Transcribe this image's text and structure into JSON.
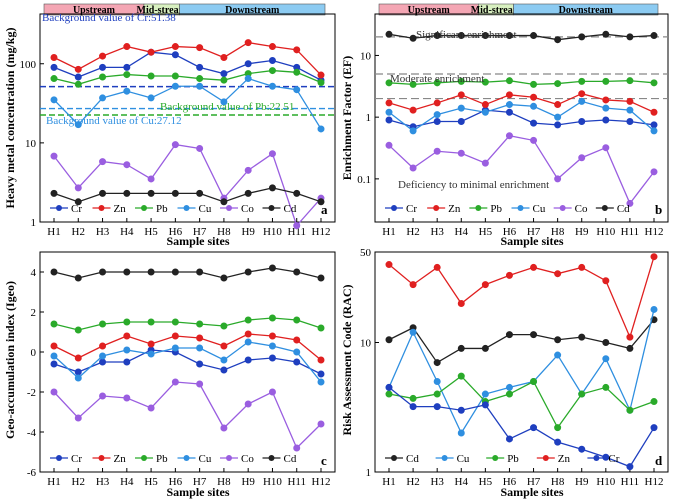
{
  "sites": [
    "H1",
    "H2",
    "H3",
    "H4",
    "H5",
    "H6",
    "H7",
    "H8",
    "H9",
    "H10",
    "H11",
    "H12"
  ],
  "xlabel": "Sample sites",
  "regions": {
    "upstream": "Upstream",
    "midstream": "Mid-stream",
    "downstream": "Downstream"
  },
  "colors": {
    "Cr": "#1f3fbf",
    "Zn": "#e02020",
    "Pb": "#2aaa2a",
    "Cu": "#2f8fe0",
    "Co": "#9a5ee0",
    "Cd": "#222222",
    "upstream_fill": "#f4a6b4",
    "midstream_fill": "#d8f0c0",
    "downstream_fill": "#8ccbf2"
  },
  "chart_data": [
    {
      "type": "line",
      "panel_label": "a",
      "ylabel": "Heavy metal concentration (mg/kg)",
      "yscale": "log",
      "ylim": [
        1,
        300
      ],
      "legend": [
        "Cr",
        "Zn",
        "Pb",
        "Cu",
        "Co",
        "Cd"
      ],
      "annotations": {
        "cr_bg": "Background value of Cr:51.38",
        "pb_bg": "Background value of Pb:22.51",
        "cu_bg": "Background value of Cu:27.12"
      },
      "background_values": {
        "Cr": 51.38,
        "Pb": 22.51,
        "Cu": 27.12
      },
      "series": [
        {
          "name": "Cr",
          "values": [
            90,
            68,
            90,
            90,
            140,
            130,
            90,
            75,
            100,
            110,
            90,
            62
          ]
        },
        {
          "name": "Zn",
          "values": [
            120,
            85,
            125,
            165,
            140,
            165,
            160,
            120,
            185,
            165,
            150,
            72
          ]
        },
        {
          "name": "Pb",
          "values": [
            65,
            55,
            68,
            73,
            70,
            70,
            65,
            62,
            75,
            82,
            78,
            58
          ]
        },
        {
          "name": "Cu",
          "values": [
            35,
            17,
            37,
            45,
            37,
            52,
            52,
            33,
            65,
            52,
            47,
            15
          ]
        },
        {
          "name": "Co",
          "values": [
            6.8,
            2.7,
            5.8,
            5.3,
            3.5,
            9.5,
            8.5,
            2.0,
            4.5,
            7.3,
            0.9,
            2.0
          ]
        },
        {
          "name": "Cd",
          "values": [
            2.3,
            1.8,
            2.3,
            2.3,
            2.3,
            2.3,
            2.3,
            1.8,
            2.3,
            2.7,
            2.3,
            1.8
          ]
        }
      ]
    },
    {
      "type": "line",
      "panel_label": "b",
      "ylabel": "Enrichment Factor (EF)",
      "yscale": "log",
      "ylim": [
        0.02,
        30
      ],
      "legend": [
        "Cr",
        "Zn",
        "Pb",
        "Cu",
        "Co",
        "Cd"
      ],
      "annotations": {
        "significant": "Significant enrichment",
        "moderate": "Moderate enrichment",
        "deficiency": "Deficiency to minimal enrichment"
      },
      "reference_lines": [
        20,
        5,
        2
      ],
      "series": [
        {
          "name": "Cr",
          "values": [
            0.9,
            0.7,
            0.85,
            0.85,
            1.3,
            1.2,
            0.8,
            0.75,
            0.85,
            0.9,
            0.85,
            0.75
          ]
        },
        {
          "name": "Zn",
          "values": [
            1.7,
            1.3,
            1.7,
            2.3,
            1.6,
            2.3,
            2.1,
            1.6,
            2.4,
            1.9,
            1.8,
            1.2
          ]
        },
        {
          "name": "Pb",
          "values": [
            3.6,
            3.4,
            3.6,
            3.8,
            3.7,
            3.9,
            3.4,
            3.5,
            3.8,
            3.8,
            3.9,
            3.6
          ]
        },
        {
          "name": "Cu",
          "values": [
            1.2,
            0.6,
            1.1,
            1.4,
            1.2,
            1.6,
            1.5,
            1.0,
            1.8,
            1.4,
            1.3,
            0.6
          ]
        },
        {
          "name": "Co",
          "values": [
            0.35,
            0.15,
            0.28,
            0.26,
            0.18,
            0.5,
            0.42,
            0.1,
            0.22,
            0.32,
            0.04,
            0.13
          ]
        },
        {
          "name": "Cd",
          "values": [
            22,
            19,
            21,
            21,
            21,
            21,
            21,
            18,
            20,
            22,
            20,
            21
          ]
        }
      ]
    },
    {
      "type": "line",
      "panel_label": "c",
      "ylabel": "Geo-accumulation index (Igeo)",
      "yscale": "linear",
      "ylim": [
        -6,
        5
      ],
      "legend": [
        "Cr",
        "Zn",
        "Pb",
        "Cu",
        "Co",
        "Cd"
      ],
      "series": [
        {
          "name": "Cr",
          "values": [
            -0.6,
            -1.0,
            -0.5,
            -0.5,
            0.1,
            0.0,
            -0.6,
            -0.9,
            -0.4,
            -0.3,
            -0.5,
            -1.1
          ]
        },
        {
          "name": "Zn",
          "values": [
            0.3,
            -0.3,
            0.3,
            0.8,
            0.4,
            0.8,
            0.7,
            0.3,
            0.9,
            0.8,
            0.6,
            -0.4
          ]
        },
        {
          "name": "Pb",
          "values": [
            1.4,
            1.1,
            1.4,
            1.5,
            1.5,
            1.5,
            1.4,
            1.3,
            1.6,
            1.7,
            1.6,
            1.2
          ]
        },
        {
          "name": "Cu",
          "values": [
            -0.2,
            -1.3,
            -0.2,
            0.1,
            -0.1,
            0.2,
            0.2,
            -0.4,
            0.5,
            0.3,
            0.0,
            -1.5
          ]
        },
        {
          "name": "Co",
          "values": [
            -2.0,
            -3.3,
            -2.2,
            -2.3,
            -2.8,
            -1.5,
            -1.6,
            -3.8,
            -2.6,
            -2.0,
            -4.8,
            -3.6
          ]
        },
        {
          "name": "Cd",
          "values": [
            4.0,
            3.7,
            4.0,
            4.0,
            4.0,
            4.0,
            4.0,
            3.7,
            4.0,
            4.2,
            4.0,
            3.7
          ]
        }
      ]
    },
    {
      "type": "line",
      "panel_label": "d",
      "ylabel": "Risk Assessment Code (RAC)",
      "yscale": "log",
      "ylim": [
        1,
        50
      ],
      "legend": [
        "Cd",
        "Cu",
        "Pb",
        "Zn",
        "Cr"
      ],
      "series": [
        {
          "name": "Cd",
          "values": [
            10.5,
            13,
            7,
            9,
            9,
            11.5,
            11.5,
            10.5,
            11,
            10,
            9,
            15
          ]
        },
        {
          "name": "Cu",
          "values": [
            4.5,
            12,
            5,
            2,
            4,
            4.5,
            5,
            8,
            4,
            7.5,
            3,
            18
          ]
        },
        {
          "name": "Pb",
          "values": [
            4,
            3.7,
            4,
            5.5,
            3.5,
            4,
            5,
            2.2,
            4,
            4.5,
            3,
            3.5
          ]
        },
        {
          "name": "Zn",
          "values": [
            40,
            28,
            38,
            20,
            28,
            33,
            38,
            34,
            38,
            30,
            11,
            46
          ]
        },
        {
          "name": "Cr",
          "values": [
            4.5,
            3.2,
            3.2,
            3,
            3.3,
            1.8,
            2.2,
            1.7,
            1.5,
            1.3,
            1.1,
            2.2
          ]
        }
      ]
    }
  ],
  "ticks": {
    "a": {
      "y": [
        "1",
        "10",
        "100"
      ],
      "yvals": [
        1,
        10,
        100
      ]
    },
    "b": {
      "y": [
        "0.1",
        "1",
        "10"
      ],
      "yvals": [
        0.1,
        1,
        10
      ]
    },
    "c": {
      "y": [
        "-6",
        "-4",
        "-2",
        "0",
        "2",
        "4"
      ],
      "yvals": [
        -6,
        -4,
        -2,
        0,
        2,
        4
      ]
    },
    "d": {
      "y": [
        "1",
        "10",
        "50"
      ],
      "yvals": [
        1,
        10,
        50
      ]
    }
  }
}
